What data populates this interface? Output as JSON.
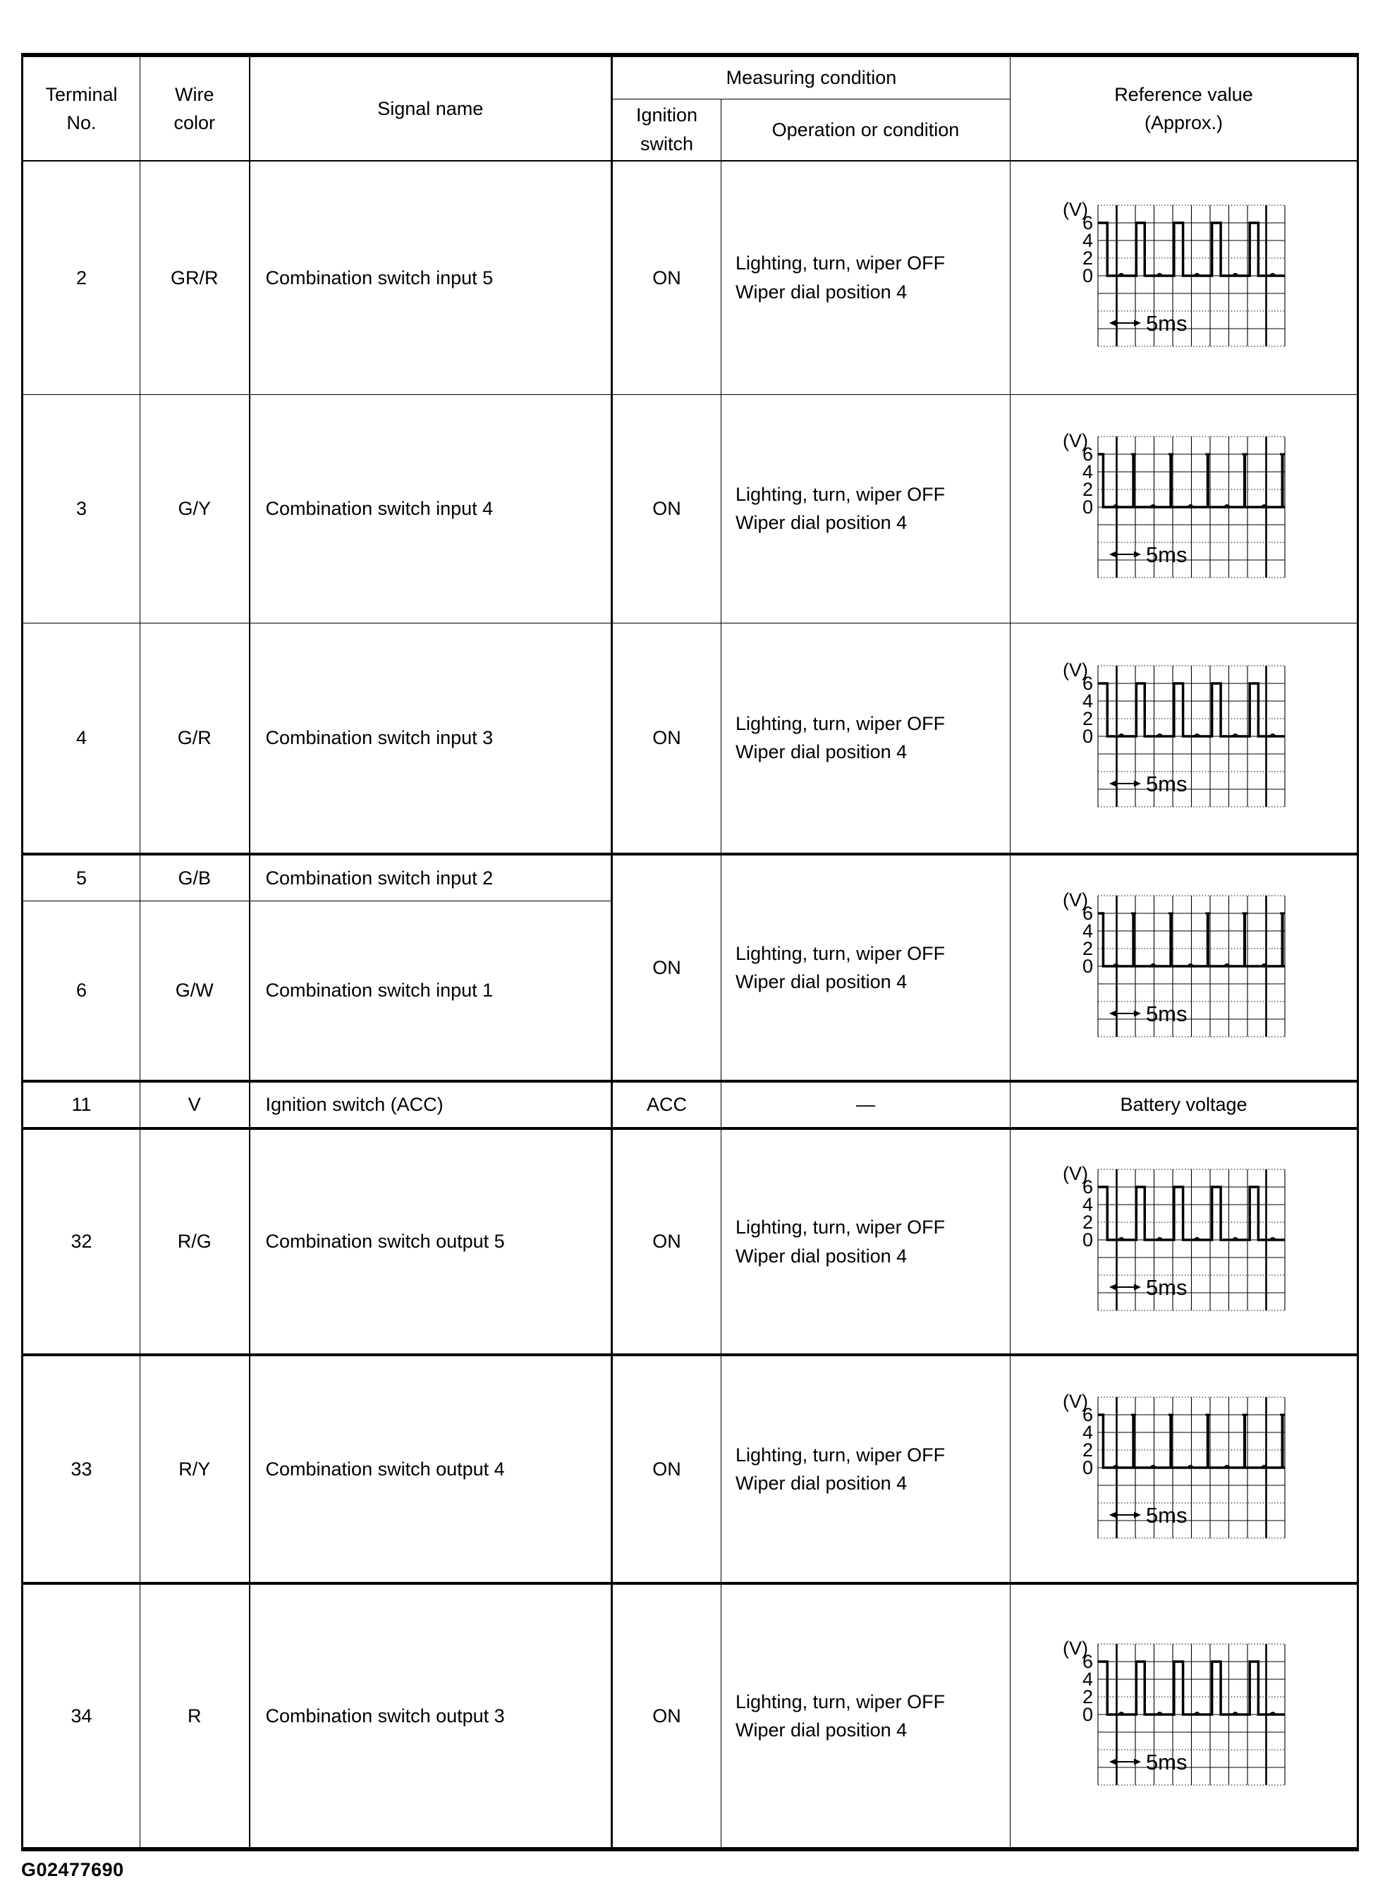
{
  "footer": {
    "code": "G02477690"
  },
  "table": {
    "header": {
      "terminal_line1": "Terminal",
      "terminal_line2": "No.",
      "wire_line1": "Wire",
      "wire_line2": "color",
      "signal": "Signal name",
      "measuring": "Measuring condition",
      "ignition_line1": "Ignition",
      "ignition_line2": "switch",
      "operation": "Operation or condition",
      "reference_line1": "Reference value",
      "reference_line2": "(Approx.)"
    },
    "rows": [
      {
        "terminal": "2",
        "wire": "GR/R",
        "signal": "Combination switch input 5",
        "ignition": "ON",
        "condition_line1": "Lighting, turn, wiper OFF",
        "condition_line2": "Wiper dial position 4",
        "reference": "waveform",
        "waveform": "wide"
      },
      {
        "terminal": "3",
        "wire": "G/Y",
        "signal": "Combination switch input 4",
        "ignition": "ON",
        "condition_line1": "Lighting, turn, wiper OFF",
        "condition_line2": "Wiper dial position 4",
        "reference": "waveform",
        "waveform": "narrow"
      },
      {
        "terminal": "4",
        "wire": "G/R",
        "signal": "Combination switch input 3",
        "ignition": "ON",
        "condition_line1": "Lighting, turn, wiper OFF",
        "condition_line2": "Wiper dial position 4",
        "reference": "waveform",
        "waveform": "wide"
      },
      {
        "terminal": "5",
        "wire": "G/B",
        "signal": "Combination switch input 2"
      },
      {
        "terminal": "6",
        "wire": "G/W",
        "signal": "Combination switch input 1",
        "ignition": "ON",
        "condition_line1": "Lighting, turn, wiper OFF",
        "condition_line2": "Wiper dial position 4",
        "reference": "waveform",
        "waveform": "narrow"
      },
      {
        "terminal": "11",
        "wire": "V",
        "signal": "Ignition switch (ACC)",
        "ignition": "ACC",
        "condition_line1": "—",
        "reference": "Battery voltage"
      },
      {
        "terminal": "32",
        "wire": "R/G",
        "signal": "Combination switch output 5",
        "ignition": "ON",
        "condition_line1": "Lighting, turn, wiper OFF",
        "condition_line2": "Wiper dial position 4",
        "reference": "waveform",
        "waveform": "wide"
      },
      {
        "terminal": "33",
        "wire": "R/Y",
        "signal": "Combination switch output 4",
        "ignition": "ON",
        "condition_line1": "Lighting, turn, wiper OFF",
        "condition_line2": "Wiper dial position 4",
        "reference": "waveform",
        "waveform": "narrow"
      },
      {
        "terminal": "34",
        "wire": "R",
        "signal": "Combination switch output 3",
        "ignition": "ON",
        "condition_line1": "Lighting, turn, wiper OFF",
        "condition_line2": "Wiper dial position 4",
        "reference": "waveform",
        "waveform": "wide"
      }
    ],
    "waveforms": {
      "wide": {
        "type": "oscilloscope-pulse",
        "unit_label": "(V)",
        "y_labels": [
          "6",
          "4",
          "2",
          "0"
        ],
        "time_label": "5ms",
        "high_v": 6,
        "low_v": 0,
        "period_divisions": 2,
        "pulse_width_divisions": 0.5,
        "grid_cols": 10,
        "grid_rows": 8,
        "pulses_cells": [
          [
            0,
            0.5
          ],
          [
            2.05,
            2.5
          ],
          [
            4.07,
            4.55
          ],
          [
            6.1,
            6.57
          ],
          [
            8.12,
            8.58
          ]
        ],
        "noise_cells": [
          1.25,
          3.3,
          5.3,
          7.35,
          9.35
        ]
      },
      "narrow": {
        "type": "oscilloscope-spike",
        "unit_label": "(V)",
        "y_labels": [
          "6",
          "4",
          "2",
          "0"
        ],
        "time_label": "5ms",
        "high_v": 6,
        "low_v": 0,
        "period_divisions": 2,
        "pulse_width_divisions": 0.1,
        "grid_cols": 10,
        "grid_rows": 8,
        "initial_pulse_cells": [
          0,
          0.28
        ],
        "spikes_cells": [
          1.9,
          3.9,
          5.88,
          7.85,
          9.87
        ],
        "noise_cells": [
          0.95,
          2.95,
          4.95,
          6.9,
          8.9
        ]
      }
    }
  }
}
